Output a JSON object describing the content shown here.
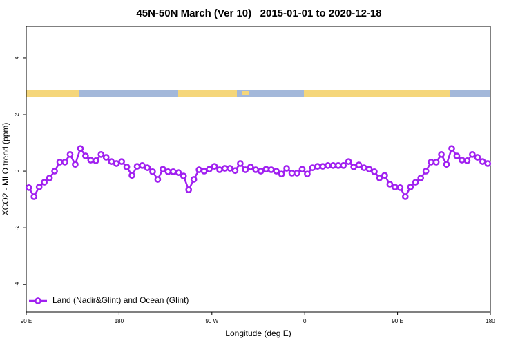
{
  "chart_data": {
    "type": "line",
    "title": "45N-50N March (Ver 10)   2015-01-01 to 2020-12-18",
    "x_label": "Longitude (deg E)",
    "y_label": "XCO2 - MLO trend (ppm)",
    "xlim": [
      90,
      540
    ],
    "ylim": [
      -4.97,
      5.12
    ],
    "xticks": [
      {
        "value": 90,
        "label": "90 E"
      },
      180,
      {
        "value": 270,
        "label": "90 W"
      },
      {
        "value": 360,
        "label": "0"
      },
      {
        "value": 450,
        "label": "90 E"
      },
      {
        "value": 540,
        "label": "180"
      }
    ],
    "yticks": [
      -4,
      -2,
      0,
      2,
      4
    ],
    "legend": "bottom-left",
    "x": [
      92.5,
      97.5,
      102.5,
      107.5,
      112.5,
      117.5,
      122.5,
      127.5,
      132.5,
      137.5,
      142.5,
      147.5,
      152.5,
      157.5,
      162.5,
      167.5,
      172.5,
      177.5,
      182.5,
      187.5,
      192.5,
      197.5,
      202.5,
      207.5,
      212.5,
      217.5,
      222.5,
      227.5,
      232.5,
      237.5,
      242.5,
      247.5,
      252.5,
      257.5,
      262.5,
      267.5,
      272.5,
      277.5,
      282.5,
      287.5,
      292.5,
      297.5,
      302.5,
      307.5,
      312.5,
      317.5,
      322.5,
      327.5,
      332.5,
      337.5,
      342.5,
      347.5,
      352.5,
      357.5,
      362.5,
      367.5,
      372.5,
      377.5,
      382.5,
      387.5,
      392.5,
      397.5,
      402.5,
      407.5,
      412.5,
      417.5,
      422.5,
      427.5,
      432.5,
      437.5,
      442.5,
      447.5,
      452.5,
      457.5,
      462.5,
      467.5,
      472.5,
      477.5,
      482.5,
      487.5,
      492.5,
      497.5,
      502.5,
      507.5,
      512.5,
      517.5,
      522.5,
      527.5,
      532.5,
      537.5
    ],
    "series": [
      {
        "name": "Land (Nadir&Glint) and Ocean (Glint)",
        "color": "#a020f0",
        "values": [
          -0.58,
          -0.9,
          -0.56,
          -0.39,
          -0.24,
          0.0,
          0.32,
          0.32,
          0.59,
          0.24,
          0.8,
          0.54,
          0.39,
          0.37,
          0.59,
          0.49,
          0.34,
          0.27,
          0.34,
          0.15,
          -0.15,
          0.17,
          0.2,
          0.12,
          -0.02,
          -0.29,
          0.07,
          -0.02,
          -0.02,
          -0.05,
          -0.17,
          -0.66,
          -0.29,
          0.05,
          0.0,
          0.07,
          0.17,
          0.05,
          0.1,
          0.1,
          0.02,
          0.27,
          0.05,
          0.15,
          0.05,
          0.0,
          0.07,
          0.05,
          0.0,
          -0.1,
          0.1,
          -0.07,
          -0.07,
          0.07,
          -0.1,
          0.12,
          0.17,
          0.17,
          0.2,
          0.2,
          0.2,
          0.2,
          0.34,
          0.15,
          0.22,
          0.12,
          0.07,
          -0.02,
          -0.24,
          -0.15,
          -0.46,
          -0.56,
          -0.58,
          -0.9,
          -0.56,
          -0.39,
          -0.24,
          0.0,
          0.32,
          0.32,
          0.59,
          0.24,
          0.8,
          0.54,
          0.39,
          0.37,
          0.59,
          0.49,
          0.34,
          0.27
        ]
      }
    ]
  }
}
